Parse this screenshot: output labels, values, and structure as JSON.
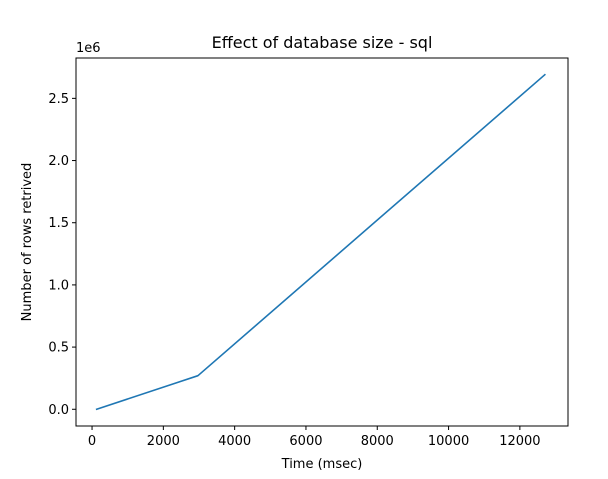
{
  "chart_data": {
    "type": "line",
    "title": "Effect of database size - sql",
    "xlabel": "Time (msec)",
    "ylabel": "Number of rows retrived",
    "y_offset_label": "1e6",
    "xlim": [
      -450,
      13350
    ],
    "ylim": [
      -134500,
      2824500
    ],
    "x_ticks": [
      {
        "value": 0,
        "label": "0"
      },
      {
        "value": 2000,
        "label": "2000"
      },
      {
        "value": 4000,
        "label": "4000"
      },
      {
        "value": 6000,
        "label": "6000"
      },
      {
        "value": 8000,
        "label": "8000"
      },
      {
        "value": 10000,
        "label": "10000"
      },
      {
        "value": 12000,
        "label": "12000"
      }
    ],
    "y_ticks": [
      {
        "value": 0,
        "label": "0.0"
      },
      {
        "value": 500000,
        "label": "0.5"
      },
      {
        "value": 1000000,
        "label": "1.0"
      },
      {
        "value": 1500000,
        "label": "1.5"
      },
      {
        "value": 2000000,
        "label": "2.0"
      },
      {
        "value": 2500000,
        "label": "2.5"
      }
    ],
    "grid": false,
    "series": [
      {
        "color": "#1f77b4",
        "x": [
          130,
          2970,
          12700
        ],
        "y": [
          0,
          270000,
          2690000
        ]
      }
    ]
  }
}
